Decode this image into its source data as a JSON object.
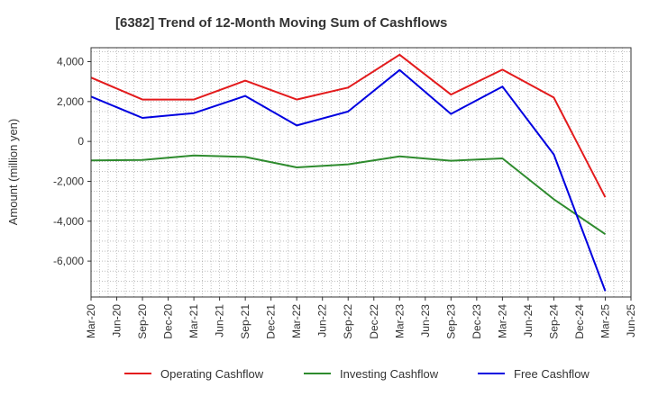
{
  "chart_data": {
    "type": "line",
    "title": "[6382]  Trend of 12-Month Moving Sum of Cashflows",
    "ylabel": "Amount (million yen)",
    "xlabel": "",
    "x_ticks": [
      "Mar-20",
      "Jun-20",
      "Sep-20",
      "Dec-20",
      "Mar-21",
      "Jun-21",
      "Sep-21",
      "Dec-21",
      "Mar-22",
      "Jun-22",
      "Sep-22",
      "Dec-22",
      "Mar-23",
      "Jun-23",
      "Sep-23",
      "Dec-23",
      "Mar-24",
      "Jun-24",
      "Sep-24",
      "Dec-24",
      "Mar-25",
      "Jun-25"
    ],
    "y_ticks": [
      4000,
      2000,
      0,
      -2000,
      -4000,
      -6000
    ],
    "y_tick_labels": [
      "4,000",
      "2,000",
      "0",
      "-2,000",
      "-4,000",
      "-6,000"
    ],
    "ylim": [
      -7800,
      4700
    ],
    "grid": true,
    "legend_position": "bottom",
    "series": [
      {
        "name": "Operating Cashflow",
        "color": "#e31a1c",
        "x": [
          "Mar-20",
          "Sep-20",
          "Mar-21",
          "Sep-21",
          "Mar-22",
          "Sep-22",
          "Mar-23",
          "Sep-23",
          "Mar-24",
          "Sep-24",
          "Mar-25"
        ],
        "values": [
          3200,
          2100,
          2100,
          3050,
          2100,
          2700,
          4350,
          2350,
          3600,
          2200,
          -2800
        ]
      },
      {
        "name": "Investing Cashflow",
        "color": "#2e8b2e",
        "x": [
          "Mar-20",
          "Sep-20",
          "Mar-21",
          "Sep-21",
          "Mar-22",
          "Sep-22",
          "Mar-23",
          "Sep-23",
          "Mar-24",
          "Sep-24",
          "Mar-25"
        ],
        "values": [
          -950,
          -930,
          -700,
          -780,
          -1300,
          -1150,
          -750,
          -970,
          -850,
          -2900,
          -4650
        ]
      },
      {
        "name": "Free Cashflow",
        "color": "#0000e0",
        "x": [
          "Mar-20",
          "Sep-20",
          "Mar-21",
          "Sep-21",
          "Mar-22",
          "Sep-22",
          "Mar-23",
          "Sep-23",
          "Mar-24",
          "Sep-24",
          "Mar-25"
        ],
        "values": [
          2250,
          1180,
          1420,
          2280,
          800,
          1500,
          3580,
          1380,
          2750,
          -650,
          -7500
        ]
      }
    ]
  }
}
